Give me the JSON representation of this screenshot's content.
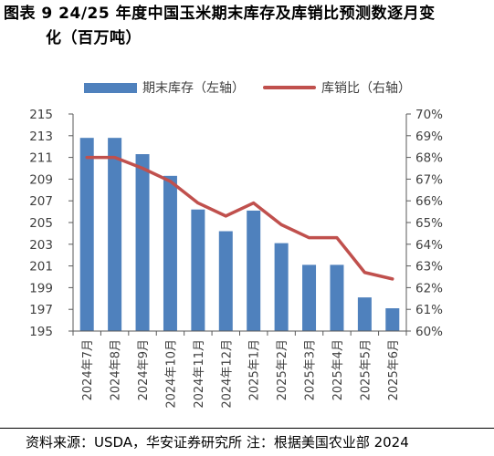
{
  "title_line1": "图表 9 24/25 年度中国玉米期末库存及库销比预测数逐月变",
  "title_line2": "化（百万吨）",
  "source": "资料来源：USDA，华安证券研究所  注：根据美国农业部 2024",
  "chart_data": {
    "type": "bar+line",
    "categories": [
      "2024年7月",
      "2024年8月",
      "2024年9月",
      "2024年10月",
      "2024年11月",
      "2024年12月",
      "2025年1月",
      "2025年2月",
      "2025年3月",
      "2025年4月",
      "2025年5月",
      "2025年6月"
    ],
    "series": [
      {
        "name": "期末库存（左轴）",
        "type": "bar",
        "axis": "left",
        "color": "#4f81bd",
        "values": [
          212.8,
          212.8,
          211.3,
          209.3,
          206.2,
          204.2,
          206.1,
          203.1,
          201.1,
          201.1,
          198.1,
          197.1
        ]
      },
      {
        "name": "库销比（右轴）",
        "type": "line",
        "axis": "right",
        "color": "#c0504d",
        "values": [
          68.0,
          68.0,
          67.5,
          66.9,
          65.9,
          65.3,
          65.9,
          64.9,
          64.3,
          64.3,
          62.7,
          62.4
        ]
      }
    ],
    "left_axis": {
      "min": 195,
      "max": 215,
      "ticks": [
        "195",
        "197",
        "199",
        "201",
        "203",
        "205",
        "207",
        "209",
        "211",
        "213",
        "215"
      ]
    },
    "right_axis": {
      "min": 60,
      "max": 70,
      "ticks": [
        "60%",
        "61%",
        "62%",
        "63%",
        "64%",
        "65%",
        "66%",
        "67%",
        "68%",
        "69%",
        "70%"
      ]
    },
    "legend_position": "top",
    "grid": false
  }
}
